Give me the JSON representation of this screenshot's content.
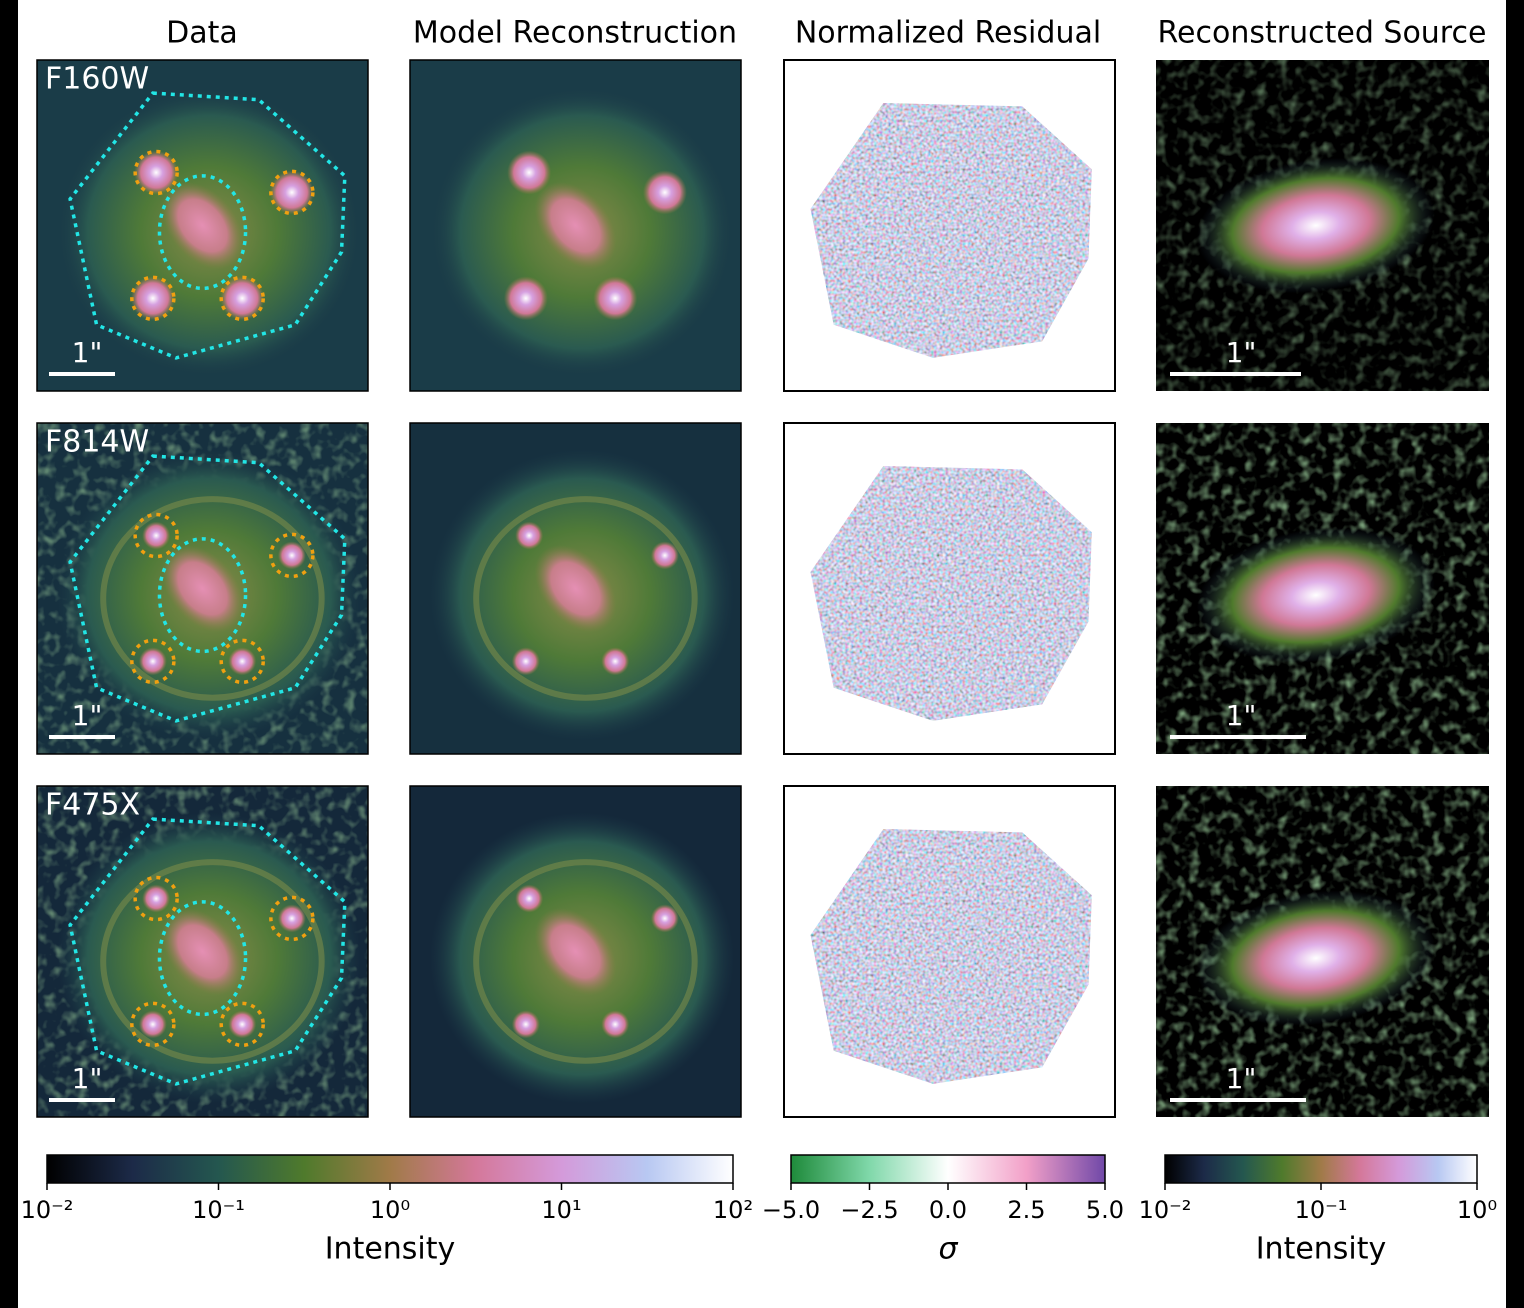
{
  "columns": [
    "Data",
    "Model Reconstruction",
    "Normalized Residual",
    "Reconstructed Source"
  ],
  "rows": [
    "F160W",
    "F814W",
    "F475X"
  ],
  "scale_bar_label": "1\"",
  "colorbars": [
    {
      "label": "Intensity",
      "scale": "log",
      "lim": [
        0.01,
        100
      ],
      "ticks": [
        {
          "value": 0.01,
          "label": "10⁻²"
        },
        {
          "value": 0.1,
          "label": "10⁻¹"
        },
        {
          "value": 1,
          "label": "10⁰"
        },
        {
          "value": 10,
          "label": "10¹"
        },
        {
          "value": 100,
          "label": "10²"
        }
      ],
      "colors": [
        "#000000",
        "#1c2a48",
        "#24574f",
        "#4f7a2c",
        "#a07a48",
        "#d4789a",
        "#d49ada",
        "#b8c8f2",
        "#ffffff"
      ]
    },
    {
      "label": "σ",
      "scale": "linear",
      "lim": [
        -5,
        5
      ],
      "ticks": [
        {
          "value": -5,
          "label": "−5.0"
        },
        {
          "value": -2.5,
          "label": "−2.5"
        },
        {
          "value": 0,
          "label": "0.0"
        },
        {
          "value": 2.5,
          "label": "2.5"
        },
        {
          "value": 5,
          "label": "5.0"
        }
      ],
      "colors": [
        "#1e8a3a",
        "#80d8aa",
        "#ffffff",
        "#f2a0c8",
        "#7048a8"
      ]
    },
    {
      "label": "Intensity",
      "scale": "log",
      "lim": [
        0.01,
        1
      ],
      "ticks": [
        {
          "value": 0.01,
          "label": "10⁻²"
        },
        {
          "value": 0.1,
          "label": "10⁻¹"
        },
        {
          "value": 1,
          "label": "10⁰"
        }
      ],
      "colors": [
        "#000000",
        "#1c2a48",
        "#24574f",
        "#4f7a2c",
        "#a07a48",
        "#d4789a",
        "#d49ada",
        "#b8c8f2",
        "#ffffff"
      ]
    }
  ]
}
